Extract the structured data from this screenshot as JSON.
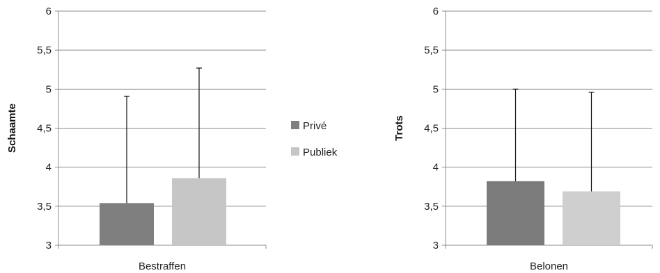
{
  "legend": {
    "items": [
      {
        "label": "Privé",
        "color": "#7f7f7f"
      },
      {
        "label": "Publiek",
        "color": "#c6c6c6"
      }
    ],
    "placement": "center"
  },
  "chart_data": [
    {
      "type": "bar",
      "categories": [
        "Bestraffen"
      ],
      "series": [
        {
          "name": "Privé",
          "values": [
            3.54
          ],
          "error_upper": [
            4.91
          ],
          "color": "#7f7f7f"
        },
        {
          "name": "Publiek",
          "values": [
            3.86
          ],
          "error_upper": [
            5.27
          ],
          "color": "#c6c6c6"
        }
      ],
      "title": "",
      "xlabel": "",
      "ylabel": "Schaamte",
      "ylim": [
        3,
        6
      ],
      "yticks": [
        "3",
        "3,5",
        "4",
        "4,5",
        "5",
        "5,5",
        "6"
      ],
      "grid": true
    },
    {
      "type": "bar",
      "categories": [
        "Belonen"
      ],
      "series": [
        {
          "name": "Privé",
          "values": [
            3.82
          ],
          "error_upper": [
            5.0
          ],
          "color": "#7b7b7b"
        },
        {
          "name": "Publiek",
          "values": [
            3.69
          ],
          "error_upper": [
            4.96
          ],
          "color": "#cfcfcf"
        }
      ],
      "title": "",
      "xlabel": "",
      "ylabel": "Trots",
      "ylim": [
        3,
        6
      ],
      "yticks": [
        "3",
        "3,5",
        "4",
        "4,5",
        "5",
        "5,5",
        "6"
      ],
      "grid": true
    }
  ]
}
